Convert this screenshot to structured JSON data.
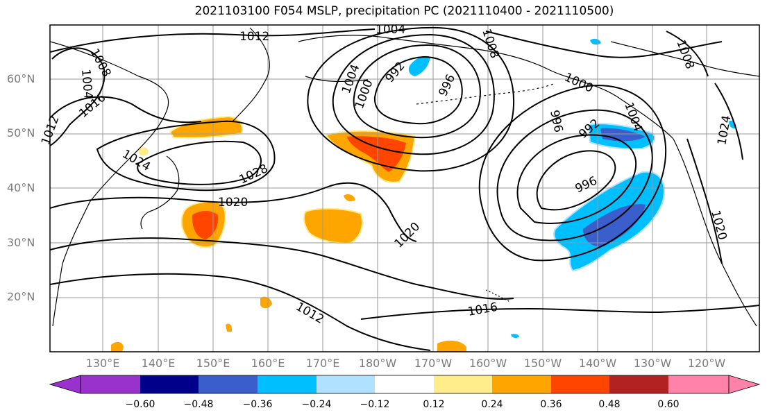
{
  "title": "2021103100 F054 MSLP, precipitation PC (2021110400 - 2021110500)",
  "lat_labels": [
    "60°N",
    "50°N",
    "40°N",
    "30°N",
    "20°N"
  ],
  "lon_labels": [
    "130°E",
    "140°E",
    "150°E",
    "160°E",
    "170°E",
    "180°W",
    "170°W",
    "160°W",
    "150°W",
    "140°W",
    "130°W",
    "120°W"
  ],
  "isobar_labels": [
    "1012",
    "1004",
    "1008",
    "1004",
    "1008",
    "1016",
    "1012",
    "1024",
    "1028",
    "1020",
    "1004",
    "1000",
    "992",
    "996",
    "1000",
    "996",
    "1004",
    "992",
    "996",
    "1008",
    "1024",
    "1020",
    "1020",
    "1012",
    "1016"
  ],
  "colorbar": {
    "tick_labels": [
      "−0.60",
      "−0.48",
      "−0.36",
      "−0.24",
      "−0.12",
      "0.12",
      "0.24",
      "0.36",
      "0.48",
      "0.60"
    ],
    "colors": [
      "#9932CC",
      "#00008B",
      "#3A5FCD",
      "#00BFFF",
      "#B0E2FF",
      "#FFFFFF",
      "#FFEC8B",
      "#FFA500",
      "#FF4500",
      "#B22222",
      "#FF82AB"
    ]
  },
  "colors": {
    "map_frame": "#000000",
    "grid": "#9a9a9a",
    "coast": "#000000",
    "axis_label": "#7a7a7a"
  }
}
